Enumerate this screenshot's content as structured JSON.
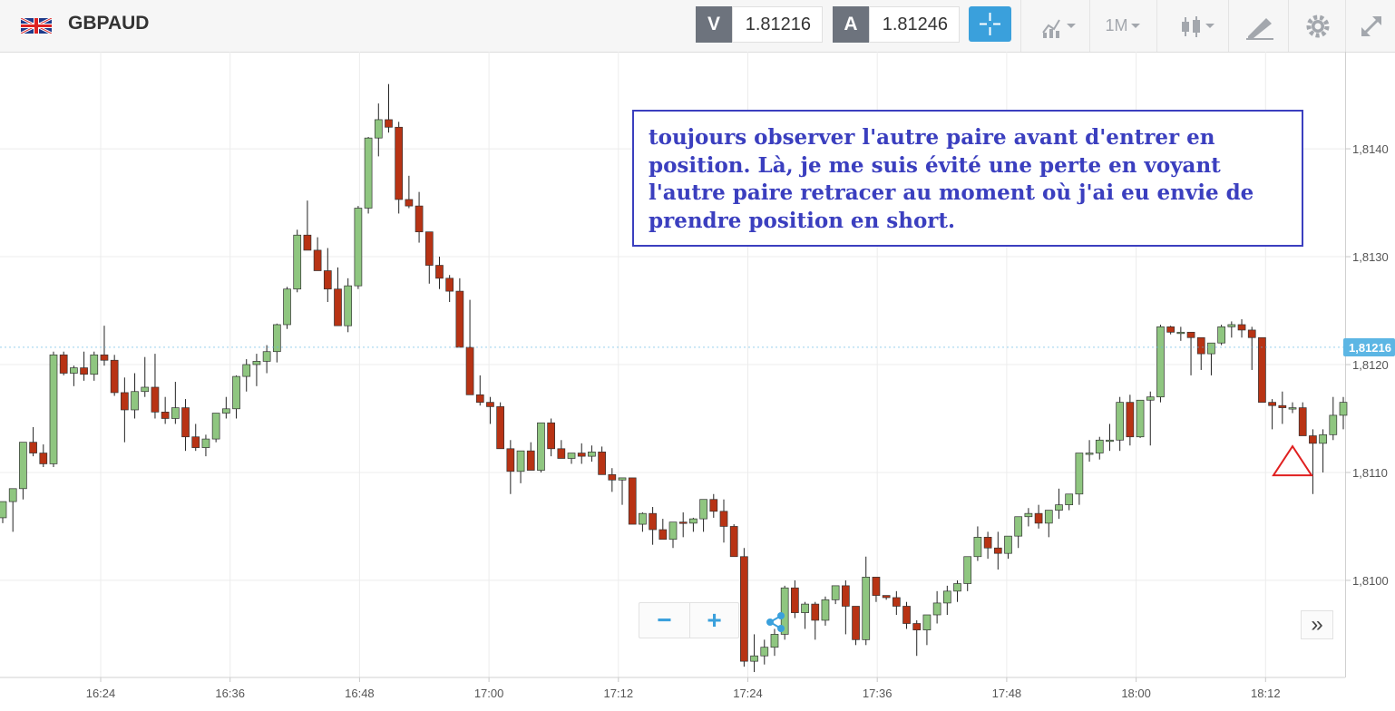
{
  "header": {
    "symbol": "GBPAUD",
    "sell_label": "V",
    "sell_price": "1.81216",
    "buy_label": "A",
    "buy_price": "1.81246",
    "timeframe": "1M",
    "icons": [
      "uk-flag-icon",
      "crosshair-icon",
      "chart-type-icon",
      "candlestick-icon",
      "drawing-tools-icon",
      "gear-icon",
      "expand-icon"
    ]
  },
  "annotation": {
    "text": "toujours observer l'autre paire avant d'entrer en position. Là, je me suis évité une perte en voyant l'autre paire retracer au moment où j'ai eu envie de prendre position en short."
  },
  "controls": {
    "zoom_out": "−",
    "zoom_in": "+",
    "more": "»"
  },
  "colors": {
    "bull": "#8fc680",
    "bear": "#b83314",
    "accent": "#3aa0dc",
    "note": "#3b3fbf",
    "price_tag": "#5cb6e4"
  },
  "chart_data": {
    "type": "candlestick",
    "title": "",
    "xlabel": "",
    "ylabel": "",
    "x_ticks": [
      "16:24",
      "16:36",
      "16:48",
      "17:00",
      "17:12",
      "17:24",
      "17:36",
      "17:48",
      "18:00",
      "18:12"
    ],
    "y_ticks": [
      "1,8100",
      "1,8110",
      "1,8120",
      "1,8130",
      "1,8140"
    ],
    "y_tick_values": [
      1.81,
      1.811,
      1.812,
      1.813,
      1.814
    ],
    "ylim": [
      1.8091,
      1.8149
    ],
    "current_price_label": "1,81216",
    "current_price": 1.81216,
    "grid": true,
    "candles_ohlc": [
      [
        1.81058,
        1.81073,
        1.81053,
        1.81073
      ],
      [
        1.81073,
        1.81085,
        1.81045,
        1.81085
      ],
      [
        1.81085,
        1.81128,
        1.81075,
        1.81128
      ],
      [
        1.81128,
        1.81142,
        1.81115,
        1.81118
      ],
      [
        1.81118,
        1.81126,
        1.81105,
        1.81108
      ],
      [
        1.81108,
        1.81212,
        1.81105,
        1.81209
      ],
      [
        1.81209,
        1.81212,
        1.8119,
        1.81192
      ],
      [
        1.81192,
        1.81199,
        1.8118,
        1.81197
      ],
      [
        1.81197,
        1.81212,
        1.81185,
        1.81191
      ],
      [
        1.81191,
        1.81212,
        1.81185,
        1.81209
      ],
      [
        1.81209,
        1.81236,
        1.81199,
        1.81204
      ],
      [
        1.81204,
        1.81209,
        1.81171,
        1.81174
      ],
      [
        1.81174,
        1.81188,
        1.81128,
        1.81158
      ],
      [
        1.81158,
        1.81192,
        1.8115,
        1.81175
      ],
      [
        1.81175,
        1.81207,
        1.8117,
        1.81179
      ],
      [
        1.81179,
        1.8121,
        1.8115,
        1.81156
      ],
      [
        1.81156,
        1.8117,
        1.81145,
        1.8115
      ],
      [
        1.8115,
        1.81184,
        1.81145,
        1.8116
      ],
      [
        1.8116,
        1.81168,
        1.8112,
        1.81133
      ],
      [
        1.81133,
        1.81145,
        1.8112,
        1.81123
      ],
      [
        1.81123,
        1.81135,
        1.81115,
        1.81131
      ],
      [
        1.81131,
        1.81155,
        1.81128,
        1.81155
      ],
      [
        1.81155,
        1.8117,
        1.8115,
        1.81159
      ],
      [
        1.81159,
        1.8119,
        1.8115,
        1.81189
      ],
      [
        1.81189,
        1.81205,
        1.81175,
        1.812
      ],
      [
        1.812,
        1.8121,
        1.8118,
        1.81203
      ],
      [
        1.81203,
        1.81218,
        1.81192,
        1.81212
      ],
      [
        1.81212,
        1.81238,
        1.81202,
        1.81237
      ],
      [
        1.81237,
        1.81272,
        1.81233,
        1.8127
      ],
      [
        1.8127,
        1.81325,
        1.81267,
        1.8132
      ],
      [
        1.8132,
        1.81352,
        1.81312,
        1.81306
      ],
      [
        1.81306,
        1.81318,
        1.8129,
        1.81287
      ],
      [
        1.81287,
        1.81308,
        1.81258,
        1.8127
      ],
      [
        1.8127,
        1.8129,
        1.81245,
        1.81236
      ],
      [
        1.81236,
        1.8128,
        1.8123,
        1.81273
      ],
      [
        1.81273,
        1.81347,
        1.8127,
        1.81345
      ],
      [
        1.81345,
        1.81411,
        1.8134,
        1.8141
      ],
      [
        1.8141,
        1.81442,
        1.81393,
        1.81427
      ],
      [
        1.81427,
        1.8146,
        1.81415,
        1.8142
      ],
      [
        1.8142,
        1.81425,
        1.8134,
        1.81353
      ],
      [
        1.81353,
        1.81375,
        1.81345,
        1.81347
      ],
      [
        1.81347,
        1.8136,
        1.81313,
        1.81323
      ],
      [
        1.81323,
        1.81323,
        1.81275,
        1.81292
      ],
      [
        1.81292,
        1.813,
        1.8127,
        1.8128
      ],
      [
        1.8128,
        1.81283,
        1.81258,
        1.81268
      ],
      [
        1.81268,
        1.8128,
        1.81221,
        1.81216
      ],
      [
        1.81216,
        1.8126,
        1.81175,
        1.81172
      ],
      [
        1.81172,
        1.8119,
        1.81162,
        1.81165
      ],
      [
        1.81165,
        1.8117,
        1.81145,
        1.81161
      ],
      [
        1.81161,
        1.81165,
        1.81147,
        1.81122
      ],
      [
        1.81122,
        1.8113,
        1.8108,
        1.81101
      ],
      [
        1.81101,
        1.81108,
        1.8109,
        1.8112
      ],
      [
        1.8112,
        1.81128,
        1.81108,
        1.81102
      ],
      [
        1.81102,
        1.8113,
        1.811,
        1.81146
      ],
      [
        1.81146,
        1.8115,
        1.81115,
        1.81122
      ],
      [
        1.81122,
        1.8113,
        1.81115,
        1.81113
      ],
      [
        1.81113,
        1.81118,
        1.81108,
        1.81118
      ],
      [
        1.81118,
        1.81127,
        1.81108,
        1.81115
      ],
      [
        1.81115,
        1.81125,
        1.8111,
        1.81119
      ],
      [
        1.81119,
        1.81124,
        1.81105,
        1.81098
      ],
      [
        1.81098,
        1.81104,
        1.81082,
        1.81093
      ],
      [
        1.81093,
        1.81095,
        1.8107,
        1.81095
      ],
      [
        1.81095,
        1.81095,
        1.81065,
        1.81052
      ],
      [
        1.81052,
        1.81063,
        1.81045,
        1.81062
      ],
      [
        1.81062,
        1.81068,
        1.81033,
        1.81047
      ],
      [
        1.81047,
        1.81057,
        1.8104,
        1.81038
      ],
      [
        1.81038,
        1.8105,
        1.8103,
        1.81054
      ],
      [
        1.81054,
        1.81063,
        1.8104,
        1.81053
      ],
      [
        1.81053,
        1.81058,
        1.81045,
        1.81057
      ],
      [
        1.81057,
        1.8107,
        1.81045,
        1.81075
      ],
      [
        1.81075,
        1.8108,
        1.81058,
        1.81064
      ],
      [
        1.81064,
        1.81075,
        1.81035,
        1.8105
      ],
      [
        1.8105,
        1.81052,
        1.81022,
        1.81022
      ],
      [
        1.81022,
        1.8103,
        1.8092,
        1.80925
      ],
      [
        1.80925,
        1.8095,
        1.80915,
        1.8093
      ],
      [
        1.8093,
        1.80945,
        1.80922,
        1.80938
      ],
      [
        1.80938,
        1.80955,
        1.8093,
        1.8095
      ],
      [
        1.8095,
        1.80995,
        1.80945,
        1.80993
      ],
      [
        1.80993,
        1.81,
        1.80965,
        1.8097
      ],
      [
        1.8097,
        1.8098,
        1.80955,
        1.80978
      ],
      [
        1.80978,
        1.8098,
        1.80945,
        1.80963
      ],
      [
        1.80963,
        1.80985,
        1.80958,
        1.80982
      ],
      [
        1.80982,
        1.80995,
        1.80978,
        1.80995
      ],
      [
        1.80995,
        1.81,
        1.8095,
        1.80976
      ],
      [
        1.80976,
        1.80975,
        1.8094,
        1.80945
      ],
      [
        1.80945,
        1.81022,
        1.8094,
        1.81003
      ],
      [
        1.81003,
        1.81,
        1.8098,
        1.80986
      ],
      [
        1.80986,
        1.80986,
        1.80982,
        1.80984
      ],
      [
        1.80984,
        1.8099,
        1.80968,
        1.80976
      ],
      [
        1.80976,
        1.8098,
        1.80955,
        1.8096
      ],
      [
        1.8096,
        1.80963,
        1.8093,
        1.80954
      ],
      [
        1.80954,
        1.8096,
        1.8094,
        1.80968
      ],
      [
        1.80968,
        1.8099,
        1.8096,
        1.80979
      ],
      [
        1.80979,
        1.80995,
        1.80968,
        1.8099
      ],
      [
        1.8099,
        1.81,
        1.8098,
        1.80997
      ],
      [
        1.80997,
        1.8102,
        1.8099,
        1.81022
      ],
      [
        1.81022,
        1.8105,
        1.81018,
        1.8104
      ],
      [
        1.8104,
        1.81045,
        1.8102,
        1.8103
      ],
      [
        1.8103,
        1.81045,
        1.8101,
        1.81025
      ],
      [
        1.81025,
        1.8104,
        1.8102,
        1.81041
      ],
      [
        1.81041,
        1.81055,
        1.8103,
        1.81059
      ],
      [
        1.81059,
        1.81067,
        1.8105,
        1.81062
      ],
      [
        1.81062,
        1.8107,
        1.81048,
        1.81053
      ],
      [
        1.81053,
        1.81065,
        1.8104,
        1.81065
      ],
      [
        1.81065,
        1.81085,
        1.81057,
        1.8107
      ],
      [
        1.8107,
        1.8108,
        1.81065,
        1.8108
      ],
      [
        1.8108,
        1.811,
        1.8107,
        1.81118
      ],
      [
        1.81118,
        1.8113,
        1.8111,
        1.81118
      ],
      [
        1.81118,
        1.81133,
        1.81112,
        1.8113
      ],
      [
        1.8113,
        1.81145,
        1.8112,
        1.8113
      ],
      [
        1.8113,
        1.8117,
        1.8112,
        1.81165
      ],
      [
        1.81165,
        1.81172,
        1.81125,
        1.81133
      ],
      [
        1.81133,
        1.81162,
        1.81132,
        1.81167
      ],
      [
        1.81167,
        1.81175,
        1.81125,
        1.8117
      ],
      [
        1.8117,
        1.81237,
        1.81165,
        1.81235
      ],
      [
        1.81235,
        1.81236,
        1.81228,
        1.8123
      ],
      [
        1.8123,
        1.81235,
        1.81222,
        1.8123
      ],
      [
        1.8123,
        1.81225,
        1.8119,
        1.81225
      ],
      [
        1.81225,
        1.81215,
        1.81195,
        1.8121
      ],
      [
        1.8121,
        1.8122,
        1.8119,
        1.8122
      ],
      [
        1.8122,
        1.81237,
        1.81218,
        1.81235
      ],
      [
        1.81235,
        1.8124,
        1.81225,
        1.81237
      ],
      [
        1.81237,
        1.81242,
        1.81225,
        1.81232
      ],
      [
        1.81232,
        1.81235,
        1.81195,
        1.81225
      ],
      [
        1.81225,
        1.81215,
        1.8117,
        1.81165
      ],
      [
        1.81165,
        1.81168,
        1.8114,
        1.81162
      ],
      [
        1.81162,
        1.81175,
        1.81145,
        1.8116
      ],
      [
        1.8116,
        1.81165,
        1.81155,
        1.8116
      ],
      [
        1.8116,
        1.81165,
        1.81135,
        1.81134
      ],
      [
        1.81134,
        1.8114,
        1.8108,
        1.81127
      ],
      [
        1.81127,
        1.8114,
        1.811,
        1.81135
      ],
      [
        1.81135,
        1.8117,
        1.8113,
        1.81153
      ],
      [
        1.81153,
        1.8117,
        1.8114,
        1.81165
      ]
    ],
    "signal_marker": "down-triangle"
  }
}
